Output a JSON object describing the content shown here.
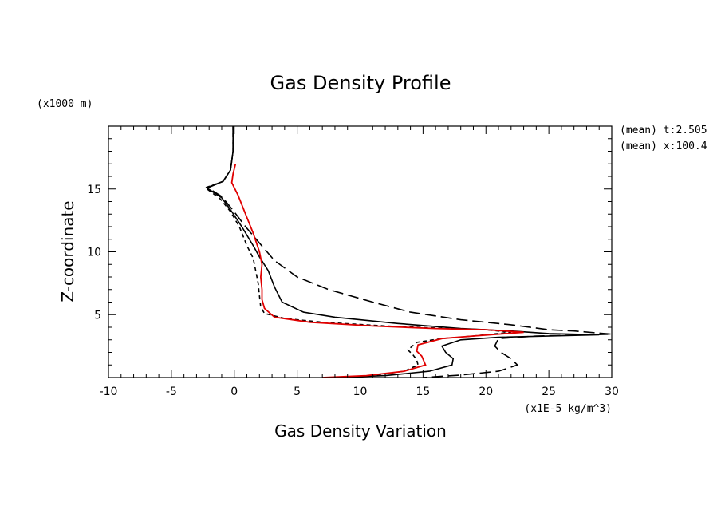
{
  "chart_data": {
    "type": "line",
    "title": "Gas Density Profile",
    "xlabel": "Gas Density Variation",
    "ylabel": "Z-coordinate",
    "x_units": "(x1E-5 kg/m^3)",
    "y_units": "(x1000 m)",
    "xlim": [
      -10,
      30
    ],
    "ylim": [
      0,
      20
    ],
    "xticks": [
      "-10",
      "-5",
      "0",
      "5",
      "10",
      "15",
      "20",
      "25",
      "30"
    ],
    "yticks": [
      "5",
      "10",
      "15"
    ],
    "xtick_values": [
      -10,
      -5,
      0,
      5,
      10,
      15,
      20,
      25,
      30
    ],
    "ytick_values": [
      5,
      10,
      15
    ],
    "annotations": [
      "(mean) t:2.505",
      "(mean) x:100.4"
    ],
    "grid": false,
    "series": [
      {
        "color": "#000000",
        "dash": "",
        "points": [
          [
            -0.1,
            20
          ],
          [
            -0.1,
            18
          ],
          [
            -0.3,
            16.5
          ],
          [
            -0.9,
            15.6
          ],
          [
            -2.2,
            15.1
          ],
          [
            -1.0,
            14.3
          ],
          [
            -0.2,
            13.2
          ],
          [
            0.6,
            12
          ],
          [
            1.5,
            10.5
          ],
          [
            2.0,
            9.6
          ],
          [
            2.7,
            8.5
          ],
          [
            3.2,
            7.2
          ],
          [
            3.8,
            6
          ],
          [
            5.5,
            5.2
          ],
          [
            8,
            4.8
          ],
          [
            13,
            4.3
          ],
          [
            18,
            3.9
          ],
          [
            22,
            3.7
          ],
          [
            25,
            3.5
          ],
          [
            29,
            3.4
          ],
          [
            21,
            3.2
          ],
          [
            18,
            3.0
          ],
          [
            16.5,
            2.5
          ],
          [
            16.8,
            2.0
          ],
          [
            17.4,
            1.5
          ],
          [
            17.3,
            1.0
          ],
          [
            15.5,
            0.5
          ],
          [
            12,
            0.15
          ],
          [
            8,
            0
          ]
        ]
      },
      {
        "color": "#000000",
        "dash": "5,4",
        "points": [
          [
            -0.1,
            20
          ],
          [
            -0.1,
            18
          ],
          [
            -0.3,
            16.5
          ],
          [
            -0.9,
            15.6
          ],
          [
            -2.3,
            15.1
          ],
          [
            -1.1,
            14.2
          ],
          [
            -0.3,
            13.2
          ],
          [
            0.4,
            12
          ],
          [
            1.0,
            10.5
          ],
          [
            1.5,
            9.5
          ],
          [
            1.7,
            8.5
          ],
          [
            1.9,
            7.5
          ],
          [
            2.0,
            6.5
          ],
          [
            2.1,
            5.6
          ],
          [
            2.4,
            5.1
          ],
          [
            4,
            4.7
          ],
          [
            7,
            4.4
          ],
          [
            12,
            4.1
          ],
          [
            17,
            3.9
          ],
          [
            20,
            3.8
          ],
          [
            22,
            3.6
          ],
          [
            19,
            3.3
          ],
          [
            16.5,
            3.1
          ],
          [
            14.5,
            2.8
          ],
          [
            13.8,
            2.2
          ],
          [
            14.2,
            1.8
          ],
          [
            14.5,
            1.4
          ],
          [
            14.6,
            1.0
          ],
          [
            13.5,
            0.5
          ],
          [
            11,
            0.15
          ],
          [
            8,
            0
          ]
        ]
      },
      {
        "color": "#000000",
        "dash": "14,6",
        "points": [
          [
            -0.1,
            20
          ],
          [
            -0.1,
            18
          ],
          [
            -0.3,
            16.5
          ],
          [
            -0.9,
            15.6
          ],
          [
            -2.1,
            15.1
          ],
          [
            -1.0,
            14.4
          ],
          [
            -0.1,
            13.3
          ],
          [
            0.9,
            12
          ],
          [
            2.0,
            10.7
          ],
          [
            3.2,
            9.3
          ],
          [
            5.0,
            8.0
          ],
          [
            7.5,
            7.0
          ],
          [
            11,
            6.0
          ],
          [
            14,
            5.2
          ],
          [
            18,
            4.6
          ],
          [
            22,
            4.2
          ],
          [
            25,
            3.8
          ],
          [
            27,
            3.7
          ],
          [
            30,
            3.45
          ],
          [
            24,
            3.3
          ],
          [
            21,
            3.1
          ],
          [
            20.7,
            2.5
          ],
          [
            21.2,
            2.0
          ],
          [
            22,
            1.5
          ],
          [
            22.5,
            1.0
          ],
          [
            21,
            0.5
          ],
          [
            18,
            0.2
          ],
          [
            15,
            0
          ]
        ]
      },
      {
        "color": "#e00000",
        "dash": "",
        "points": [
          [
            0.1,
            17.0
          ],
          [
            -0.1,
            16.2
          ],
          [
            -0.2,
            15.5
          ],
          [
            0.3,
            14.5
          ],
          [
            0.9,
            13
          ],
          [
            1.5,
            11.5
          ],
          [
            2.0,
            10
          ],
          [
            2.2,
            9
          ],
          [
            2.1,
            8
          ],
          [
            2.2,
            7
          ],
          [
            2.2,
            6.2
          ],
          [
            2.4,
            5.5
          ],
          [
            3.2,
            4.8
          ],
          [
            6,
            4.4
          ],
          [
            11,
            4.1
          ],
          [
            16,
            3.9
          ],
          [
            20,
            3.8
          ],
          [
            23,
            3.6
          ],
          [
            19,
            3.3
          ],
          [
            16.5,
            3.1
          ],
          [
            14.6,
            2.6
          ],
          [
            14.5,
            2.1
          ],
          [
            14.9,
            1.7
          ],
          [
            15.2,
            1.0
          ],
          [
            13.5,
            0.5
          ],
          [
            10.5,
            0.15
          ],
          [
            7,
            0
          ]
        ]
      }
    ]
  }
}
